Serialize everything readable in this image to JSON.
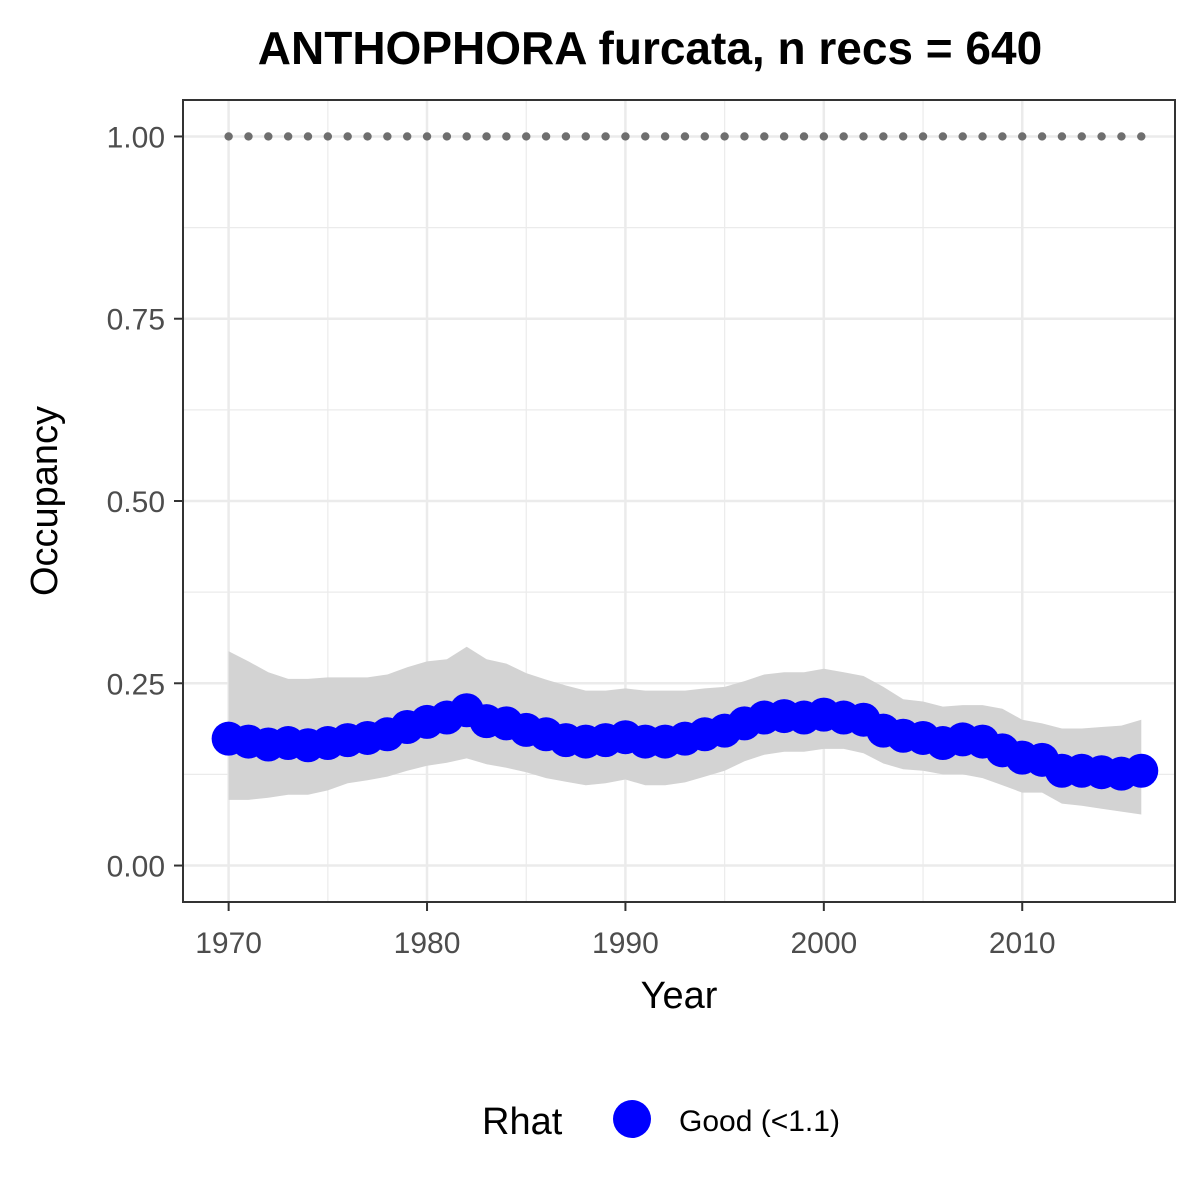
{
  "chart_data": {
    "type": "line",
    "title": "ANTHOPHORA furcata, n recs = 640",
    "xlabel": "Year",
    "ylabel": "Occupancy",
    "xlim": [
      1967.7,
      2017.7
    ],
    "ylim": [
      -0.05,
      1.05
    ],
    "x_ticks": [
      1970,
      1980,
      1990,
      2000,
      2010
    ],
    "x_tick_labels": [
      "1970",
      "1980",
      "1990",
      "2000",
      "2010"
    ],
    "y_ticks": [
      0,
      0.25,
      0.5,
      0.75,
      1
    ],
    "y_tick_labels": [
      "0.00",
      "0.25",
      "0.50",
      "0.75",
      "1.00"
    ],
    "grid": true,
    "legend": {
      "title": "Rhat",
      "position": "bottom",
      "entries": [
        {
          "label": "Good (<1.1)",
          "color": "#0000ff"
        }
      ]
    },
    "colors": {
      "series": "#0000ff",
      "ribbon": "#d3d3d3",
      "reference": "#6e6e6e",
      "grid_major": "#ebebeb",
      "panel_border": "#333333"
    },
    "x": [
      1970,
      1971,
      1972,
      1973,
      1974,
      1975,
      1976,
      1977,
      1978,
      1979,
      1980,
      1981,
      1982,
      1983,
      1984,
      1985,
      1986,
      1987,
      1988,
      1989,
      1990,
      1991,
      1992,
      1993,
      1994,
      1995,
      1996,
      1997,
      1998,
      1999,
      2000,
      2001,
      2002,
      2003,
      2004,
      2005,
      2006,
      2007,
      2008,
      2009,
      2010,
      2011,
      2012,
      2013,
      2014,
      2015,
      2016
    ],
    "series": [
      {
        "values": [
          0.174,
          0.17,
          0.166,
          0.168,
          0.165,
          0.168,
          0.172,
          0.175,
          0.18,
          0.19,
          0.197,
          0.203,
          0.213,
          0.198,
          0.195,
          0.186,
          0.18,
          0.172,
          0.17,
          0.172,
          0.176,
          0.17,
          0.17,
          0.174,
          0.18,
          0.185,
          0.195,
          0.203,
          0.205,
          0.203,
          0.207,
          0.203,
          0.2,
          0.185,
          0.178,
          0.175,
          0.168,
          0.173,
          0.17,
          0.158,
          0.148,
          0.145,
          0.13,
          0.13,
          0.128,
          0.126,
          0.13
        ],
        "lower": [
          0.09,
          0.09,
          0.093,
          0.097,
          0.097,
          0.103,
          0.113,
          0.117,
          0.122,
          0.13,
          0.137,
          0.141,
          0.147,
          0.139,
          0.134,
          0.128,
          0.12,
          0.115,
          0.11,
          0.113,
          0.118,
          0.11,
          0.11,
          0.114,
          0.122,
          0.13,
          0.143,
          0.152,
          0.156,
          0.156,
          0.16,
          0.16,
          0.154,
          0.14,
          0.132,
          0.13,
          0.125,
          0.125,
          0.12,
          0.11,
          0.1,
          0.1,
          0.085,
          0.082,
          0.078,
          0.074,
          0.07
        ],
        "upper": [
          0.294,
          0.28,
          0.265,
          0.256,
          0.256,
          0.258,
          0.258,
          0.258,
          0.262,
          0.272,
          0.28,
          0.283,
          0.3,
          0.283,
          0.277,
          0.264,
          0.255,
          0.247,
          0.24,
          0.24,
          0.243,
          0.24,
          0.24,
          0.24,
          0.243,
          0.245,
          0.253,
          0.262,
          0.265,
          0.265,
          0.27,
          0.265,
          0.26,
          0.245,
          0.228,
          0.225,
          0.218,
          0.22,
          0.22,
          0.215,
          0.2,
          0.195,
          0.188,
          0.188,
          0.19,
          0.192,
          0.2
        ]
      },
      {
        "values": [
          1,
          1,
          1,
          1,
          1,
          1,
          1,
          1,
          1,
          1,
          1,
          1,
          1,
          1,
          1,
          1,
          1,
          1,
          1,
          1,
          1,
          1,
          1,
          1,
          1,
          1,
          1,
          1,
          1,
          1,
          1,
          1,
          1,
          1,
          1,
          1,
          1,
          1,
          1,
          1,
          1,
          1,
          1,
          1,
          1,
          1,
          1
        ]
      }
    ]
  }
}
